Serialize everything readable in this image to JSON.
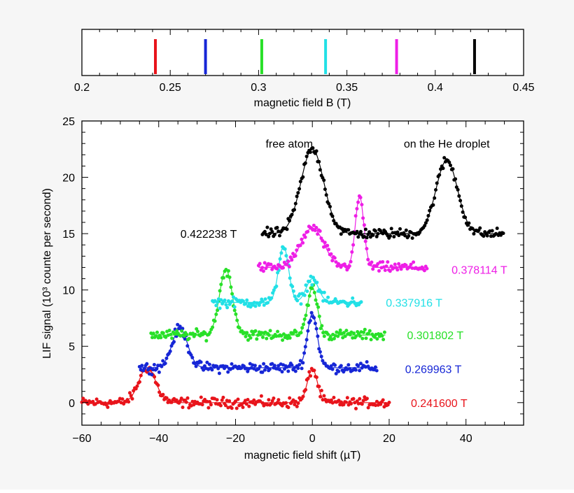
{
  "chart_data": [
    {
      "type": "scatter",
      "title": "",
      "xlabel": "magnetic field B (T)",
      "ylabel": "",
      "xlim": [
        0.2,
        0.45
      ],
      "xticks": [
        0.2,
        0.25,
        0.3,
        0.35,
        0.4,
        0.45
      ],
      "xticklabels": [
        "0.2",
        "0.25",
        "0.3",
        "0.35",
        "0.4",
        "0.45"
      ],
      "grid": false,
      "markers": [
        {
          "x": 0.2416,
          "color": "#e8141b"
        },
        {
          "x": 0.269963,
          "color": "#1626d6"
        },
        {
          "x": 0.301802,
          "color": "#28e028"
        },
        {
          "x": 0.337916,
          "color": "#22e0e6"
        },
        {
          "x": 0.378114,
          "color": "#ee1ee6"
        },
        {
          "x": 0.422238,
          "color": "#000000"
        }
      ]
    },
    {
      "type": "scatter",
      "title": "",
      "xlabel": "magnetic field shift (µT)",
      "ylabel": "LIF signal (10³ counte per second)",
      "xlim": [
        -60,
        55
      ],
      "ylim": [
        -2,
        25
      ],
      "xticks": [
        -60,
        -40,
        -20,
        0,
        20,
        40
      ],
      "xticklabels": [
        "−60",
        "−40",
        "−20",
        "0",
        "20",
        "40"
      ],
      "yticks": [
        0,
        5,
        10,
        15,
        20,
        25
      ],
      "yticklabels": [
        "0",
        "5",
        "10",
        "15",
        "20",
        "25"
      ],
      "grid": false,
      "annotations": [
        {
          "text": "free atom",
          "x": -6,
          "y": 23
        },
        {
          "text": "on the He droplet",
          "x": 35,
          "y": 23
        }
      ],
      "series": [
        {
          "name": "0.241600 T",
          "color": "#e8141b",
          "baseline": 0,
          "xrange": [
            -60,
            20
          ],
          "peaks": [
            {
              "x": -43,
              "height": 3.1,
              "width": 2.2
            },
            {
              "x": 0,
              "height": 3.0,
              "width": 1.3
            }
          ],
          "label_at": {
            "x": 33,
            "y": 0
          }
        },
        {
          "name": "0.269963 T",
          "color": "#1626d6",
          "baseline": 3.1,
          "xrange": [
            -45,
            17
          ],
          "peaks": [
            {
              "x": -34.5,
              "height": 3.5,
              "width": 2.0
            },
            {
              "x": 0,
              "height": 4.8,
              "width": 1.3
            }
          ],
          "label_at": {
            "x": 31.5,
            "y": 3
          }
        },
        {
          "name": "0.301802 T",
          "color": "#28e028",
          "baseline": 6.0,
          "xrange": [
            -42,
            19
          ],
          "peaks": [
            {
              "x": -22.5,
              "height": 5.8,
              "width": 1.7
            },
            {
              "x": 0,
              "height": 4.2,
              "width": 1.3
            }
          ],
          "label_at": {
            "x": 32,
            "y": 6
          }
        },
        {
          "name": "0.337916 T",
          "color": "#22e0e6",
          "baseline": 8.9,
          "xrange": [
            -26,
            13
          ],
          "peaks": [
            {
              "x": -7.5,
              "height": 5.0,
              "width": 1.3
            },
            {
              "x": 0,
              "height": 2.1,
              "width": 1.6
            }
          ],
          "label_at": {
            "x": 26.5,
            "y": 8.9
          }
        },
        {
          "name": "0.378114 T",
          "color": "#ee1ee6",
          "baseline": 12.0,
          "xrange": [
            -14,
            30
          ],
          "peaks": [
            {
              "x": 0,
              "height": 3.5,
              "width": 3.0
            },
            {
              "x": 12.3,
              "height": 6.3,
              "width": 1.1
            }
          ],
          "label_at": {
            "x": 43.5,
            "y": 11.8
          }
        },
        {
          "name": "0.422238 T",
          "color": "#000000",
          "baseline": 15.0,
          "xrange": [
            -13,
            50
          ],
          "peaks": [
            {
              "x": 0,
              "height": 7.5,
              "width": 3.0
            },
            {
              "x": 35,
              "height": 6.5,
              "width": 2.8
            }
          ],
          "label_at": {
            "x": -27,
            "y": 15
          }
        }
      ]
    }
  ]
}
